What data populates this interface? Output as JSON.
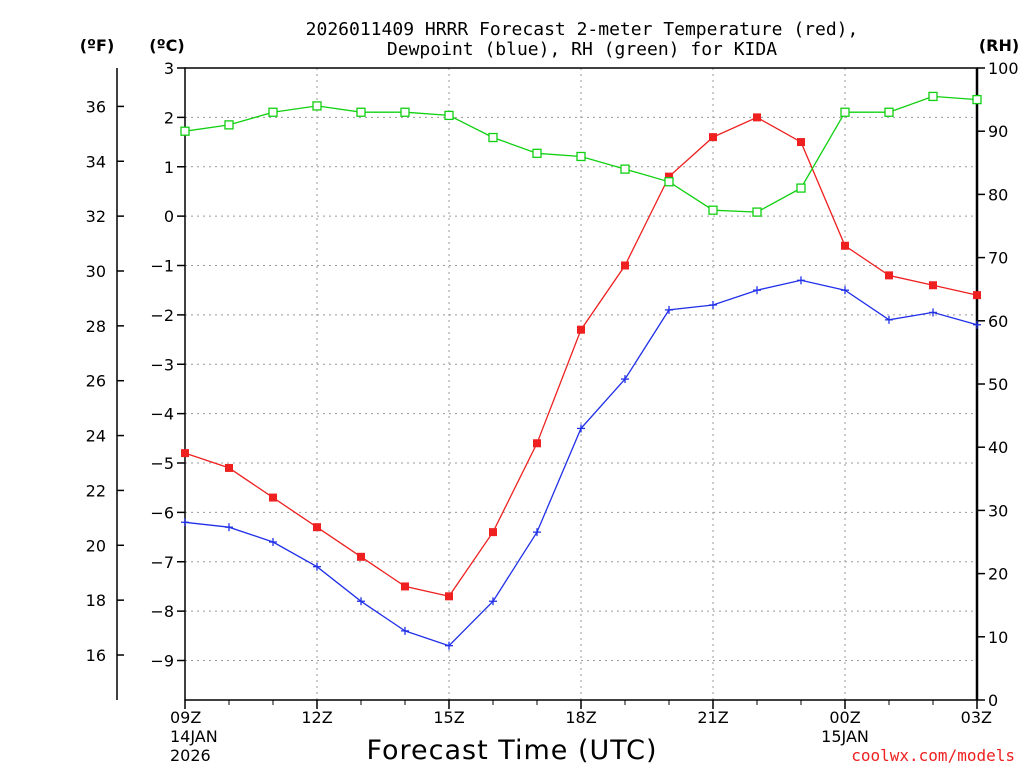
{
  "chart_data": {
    "type": "line",
    "title_line1": "2026011409 HRRR Forecast 2-meter Temperature (red),",
    "title_line2": "Dewpoint (blue), RH (green) for KIDA",
    "unit_f": "(ºF)",
    "unit_c": "(ºC)",
    "unit_rh": "(RH)",
    "xlabel": "Forecast Time (UTC)",
    "credit": "coolwx.com/models",
    "x_hours": [
      0,
      1,
      2,
      3,
      4,
      5,
      6,
      7,
      8,
      9,
      10,
      11,
      12,
      13,
      14,
      15,
      16,
      17,
      18
    ],
    "x_ticks": [
      {
        "hour": 0,
        "label": "09Z",
        "sub1": "14JAN",
        "sub2": "2026"
      },
      {
        "hour": 3,
        "label": "12Z",
        "sub1": "",
        "sub2": ""
      },
      {
        "hour": 6,
        "label": "15Z",
        "sub1": "",
        "sub2": ""
      },
      {
        "hour": 9,
        "label": "18Z",
        "sub1": "",
        "sub2": ""
      },
      {
        "hour": 12,
        "label": "21Z",
        "sub1": "",
        "sub2": ""
      },
      {
        "hour": 15,
        "label": "00Z",
        "sub1": "15JAN",
        "sub2": ""
      },
      {
        "hour": 18,
        "label": "03Z",
        "sub1": "",
        "sub2": ""
      }
    ],
    "celsius_axis": {
      "min": -9.8,
      "max": 3.0,
      "ticks": [
        3,
        2,
        1,
        0,
        -1,
        -2,
        -3,
        -4,
        -5,
        -6,
        -7,
        -8,
        -9
      ]
    },
    "fahrenheit_ticks": [
      36,
      34,
      32,
      30,
      28,
      26,
      24,
      22,
      20,
      18,
      16
    ],
    "rh_axis": {
      "min": 0,
      "max": 100,
      "ticks": [
        100,
        90,
        80,
        70,
        60,
        50,
        40,
        30,
        20,
        10,
        0
      ]
    },
    "series": [
      {
        "name": "Temperature",
        "color": "#ee2020",
        "marker": "filled-square",
        "axis": "celsius",
        "values": [
          -4.8,
          -5.1,
          -5.7,
          -6.3,
          -6.9,
          -7.5,
          -7.7,
          -6.4,
          -4.6,
          -2.3,
          -1.0,
          0.8,
          1.6,
          2.0,
          1.5,
          -0.6,
          -1.2,
          -1.4,
          -1.6
        ]
      },
      {
        "name": "Dewpoint",
        "color": "#2030e8",
        "marker": "plus",
        "axis": "celsius",
        "values": [
          -6.2,
          -6.3,
          -6.6,
          -7.1,
          -7.8,
          -8.4,
          -8.7,
          -7.8,
          -6.4,
          -4.3,
          -3.3,
          -1.9,
          -1.8,
          -1.5,
          -1.3,
          -1.5,
          -2.1,
          -1.95,
          -2.2
        ]
      },
      {
        "name": "Relative Humidity",
        "color": "#10d010",
        "marker": "open-square",
        "axis": "rh",
        "values": [
          90,
          91,
          93,
          94,
          93,
          93,
          92.5,
          89,
          86.5,
          86,
          84,
          82,
          77.5,
          77.2,
          81,
          93,
          93,
          95.5,
          95
        ]
      }
    ]
  }
}
